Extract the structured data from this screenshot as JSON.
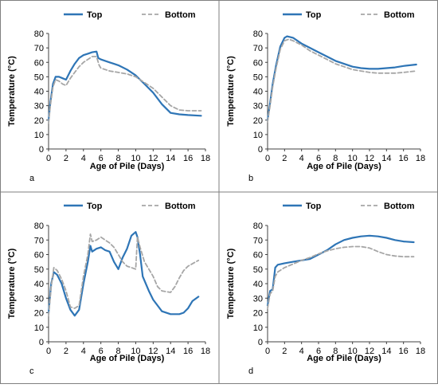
{
  "chart_data": [
    {
      "panel_label": "a",
      "type": "line",
      "xlabel": "Age of Pile (Days)",
      "ylabel": "Temperature (°C)",
      "xlim": [
        0,
        18
      ],
      "ylim": [
        0,
        80
      ],
      "xticks": [
        0,
        2,
        4,
        6,
        8,
        10,
        12,
        14,
        16,
        18
      ],
      "yticks": [
        0,
        10,
        20,
        30,
        40,
        50,
        60,
        70,
        80
      ],
      "legend_position": "top-center",
      "grid": false,
      "series": [
        {
          "name": "Top",
          "color": "#2E75B6",
          "style": "solid",
          "points": [
            [
              0,
              20
            ],
            [
              0.2,
              32
            ],
            [
              0.5,
              45
            ],
            [
              0.8,
              50
            ],
            [
              1.2,
              50
            ],
            [
              1.6,
              49
            ],
            [
              2.0,
              48
            ],
            [
              2.5,
              54
            ],
            [
              3.0,
              59
            ],
            [
              3.5,
              63
            ],
            [
              4.0,
              65
            ],
            [
              4.5,
              66
            ],
            [
              5.0,
              67
            ],
            [
              5.5,
              67.5
            ],
            [
              5.7,
              63
            ],
            [
              6.0,
              62
            ],
            [
              6.5,
              61
            ],
            [
              7.0,
              60
            ],
            [
              7.5,
              59
            ],
            [
              8.0,
              58
            ],
            [
              9.0,
              55
            ],
            [
              10.0,
              51
            ],
            [
              11.0,
              45
            ],
            [
              12.0,
              39
            ],
            [
              13.0,
              31
            ],
            [
              14.0,
              25
            ],
            [
              15.0,
              24
            ],
            [
              16.0,
              23.5
            ],
            [
              17.5,
              23
            ]
          ]
        },
        {
          "name": "Bottom",
          "color": "#A6A6A6",
          "style": "dashed",
          "points": [
            [
              0,
              18
            ],
            [
              0.2,
              30
            ],
            [
              0.5,
              43
            ],
            [
              0.8,
              48
            ],
            [
              1.2,
              47
            ],
            [
              1.6,
              45
            ],
            [
              2.0,
              44
            ],
            [
              2.5,
              49
            ],
            [
              3.0,
              53
            ],
            [
              3.5,
              57
            ],
            [
              4.0,
              60
            ],
            [
              4.5,
              62
            ],
            [
              5.0,
              64
            ],
            [
              5.5,
              64
            ],
            [
              5.8,
              58
            ],
            [
              6.0,
              56
            ],
            [
              7.0,
              54
            ],
            [
              8.0,
              53
            ],
            [
              9.0,
              52
            ],
            [
              10.0,
              50
            ],
            [
              11.0,
              46
            ],
            [
              12.0,
              42
            ],
            [
              13.0,
              36
            ],
            [
              14.0,
              30
            ],
            [
              15.0,
              27
            ],
            [
              16.0,
              26.5
            ],
            [
              17.5,
              26.5
            ]
          ]
        }
      ]
    },
    {
      "panel_label": "b",
      "type": "line",
      "xlabel": "Age of Pile (Days)",
      "ylabel": "Temperature (°C)",
      "xlim": [
        0,
        18
      ],
      "ylim": [
        0,
        80
      ],
      "xticks": [
        0,
        2,
        4,
        6,
        8,
        10,
        12,
        14,
        16,
        18
      ],
      "yticks": [
        0,
        10,
        20,
        30,
        40,
        50,
        60,
        70,
        80
      ],
      "legend_position": "top-center",
      "grid": false,
      "series": [
        {
          "name": "Top",
          "color": "#2E75B6",
          "style": "solid",
          "points": [
            [
              0,
              20
            ],
            [
              0.3,
              32
            ],
            [
              0.6,
              45
            ],
            [
              1.0,
              58
            ],
            [
              1.5,
              71
            ],
            [
              2.0,
              77
            ],
            [
              2.3,
              78
            ],
            [
              3.0,
              77
            ],
            [
              4.0,
              73
            ],
            [
              5.0,
              70
            ],
            [
              6.0,
              67
            ],
            [
              7.0,
              64
            ],
            [
              8.0,
              61
            ],
            [
              9.0,
              59
            ],
            [
              10.0,
              57
            ],
            [
              11.0,
              56
            ],
            [
              12.0,
              55.5
            ],
            [
              13.0,
              55.5
            ],
            [
              14.0,
              56
            ],
            [
              15.0,
              56.5
            ],
            [
              16.0,
              57.5
            ],
            [
              17.5,
              58.5
            ]
          ]
        },
        {
          "name": "Bottom",
          "color": "#A6A6A6",
          "style": "dashed",
          "points": [
            [
              0,
              19
            ],
            [
              0.3,
              30
            ],
            [
              0.6,
              43
            ],
            [
              1.0,
              56
            ],
            [
              1.5,
              69
            ],
            [
              2.0,
              75
            ],
            [
              2.5,
              76
            ],
            [
              3.0,
              75
            ],
            [
              4.0,
              72
            ],
            [
              5.0,
              68
            ],
            [
              6.0,
              65
            ],
            [
              7.0,
              62
            ],
            [
              8.0,
              59
            ],
            [
              9.0,
              57
            ],
            [
              10.0,
              55
            ],
            [
              11.0,
              54
            ],
            [
              12.0,
              53
            ],
            [
              13.0,
              52.5
            ],
            [
              14.0,
              52.5
            ],
            [
              15.0,
              52.5
            ],
            [
              16.0,
              53
            ],
            [
              17.5,
              54
            ]
          ]
        }
      ]
    },
    {
      "panel_label": "c",
      "type": "line",
      "xlabel": "Age of Pile (Days)",
      "ylabel": "Temperature (°C)",
      "xlim": [
        0,
        18
      ],
      "ylim": [
        0,
        80
      ],
      "xticks": [
        0,
        2,
        4,
        6,
        8,
        10,
        12,
        14,
        16,
        18
      ],
      "yticks": [
        0,
        10,
        20,
        30,
        40,
        50,
        60,
        70,
        80
      ],
      "legend_position": "top-center",
      "grid": false,
      "series": [
        {
          "name": "Top",
          "color": "#2E75B6",
          "style": "solid",
          "points": [
            [
              0,
              20
            ],
            [
              0.3,
              40
            ],
            [
              0.6,
              48
            ],
            [
              1.0,
              46
            ],
            [
              1.5,
              40
            ],
            [
              2.0,
              30
            ],
            [
              2.5,
              22
            ],
            [
              3.0,
              18
            ],
            [
              3.5,
              22
            ],
            [
              4.0,
              40
            ],
            [
              4.5,
              55
            ],
            [
              4.8,
              66
            ],
            [
              5.0,
              62
            ],
            [
              5.5,
              64
            ],
            [
              6.0,
              65
            ],
            [
              6.5,
              63
            ],
            [
              7.0,
              62
            ],
            [
              7.5,
              55
            ],
            [
              8.0,
              50
            ],
            [
              8.5,
              58
            ],
            [
              9.0,
              64
            ],
            [
              9.5,
              73
            ],
            [
              10.0,
              75.5
            ],
            [
              10.2,
              72
            ],
            [
              10.5,
              60
            ],
            [
              10.8,
              45
            ],
            [
              11.5,
              35
            ],
            [
              12.0,
              29
            ],
            [
              12.5,
              25
            ],
            [
              13.0,
              21
            ],
            [
              14.0,
              19
            ],
            [
              15.0,
              19
            ],
            [
              15.5,
              20
            ],
            [
              16.0,
              23
            ],
            [
              16.5,
              28
            ],
            [
              17.2,
              31
            ]
          ]
        },
        {
          "name": "Bottom",
          "color": "#A6A6A6",
          "style": "dashed",
          "points": [
            [
              0,
              18
            ],
            [
              0.3,
              38
            ],
            [
              0.6,
              51
            ],
            [
              1.0,
              49
            ],
            [
              1.5,
              43
            ],
            [
              2.0,
              35
            ],
            [
              2.5,
              24
            ],
            [
              3.0,
              23
            ],
            [
              3.5,
              25
            ],
            [
              4.0,
              45
            ],
            [
              4.5,
              60
            ],
            [
              4.8,
              74
            ],
            [
              5.0,
              69
            ],
            [
              5.5,
              70
            ],
            [
              6.0,
              72
            ],
            [
              6.5,
              70
            ],
            [
              7.0,
              68
            ],
            [
              7.5,
              65
            ],
            [
              8.0,
              60
            ],
            [
              8.5,
              55
            ],
            [
              9.0,
              52
            ],
            [
              9.5,
              51
            ],
            [
              10.0,
              50
            ],
            [
              10.2,
              72
            ],
            [
              10.5,
              65
            ],
            [
              11.0,
              55
            ],
            [
              11.5,
              50
            ],
            [
              12.0,
              45
            ],
            [
              12.5,
              38
            ],
            [
              13.0,
              35
            ],
            [
              14.0,
              34
            ],
            [
              14.5,
              38
            ],
            [
              15.0,
              44
            ],
            [
              15.5,
              49
            ],
            [
              16.0,
              52
            ],
            [
              17.2,
              56
            ]
          ]
        }
      ]
    },
    {
      "panel_label": "d",
      "type": "line",
      "xlabel": "Age of Pile (Days)",
      "ylabel": "Temperature (°C)",
      "xlim": [
        0,
        18
      ],
      "ylim": [
        0,
        80
      ],
      "xticks": [
        0,
        2,
        4,
        6,
        8,
        10,
        12,
        14,
        16,
        18
      ],
      "yticks": [
        0,
        10,
        20,
        30,
        40,
        50,
        60,
        70,
        80
      ],
      "legend_position": "top-center",
      "grid": false,
      "series": [
        {
          "name": "Top",
          "color": "#2E75B6",
          "style": "solid",
          "points": [
            [
              0,
              25
            ],
            [
              0.3,
              35
            ],
            [
              0.6,
              36
            ],
            [
              0.9,
              51
            ],
            [
              1.2,
              53
            ],
            [
              2.0,
              54
            ],
            [
              3.0,
              55
            ],
            [
              4.0,
              56
            ],
            [
              5.0,
              57
            ],
            [
              6.0,
              60
            ],
            [
              7.0,
              63
            ],
            [
              8.0,
              67
            ],
            [
              9.0,
              70
            ],
            [
              10.0,
              71.5
            ],
            [
              11.0,
              72.5
            ],
            [
              12.0,
              73
            ],
            [
              13.0,
              72.5
            ],
            [
              14.0,
              71.5
            ],
            [
              15.0,
              70
            ],
            [
              16.0,
              69
            ],
            [
              17.2,
              68.5
            ]
          ]
        },
        {
          "name": "Bottom",
          "color": "#A6A6A6",
          "style": "dashed",
          "points": [
            [
              0,
              23
            ],
            [
              0.3,
              33
            ],
            [
              0.6,
              35
            ],
            [
              0.9,
              45
            ],
            [
              1.2,
              48
            ],
            [
              2.0,
              51
            ],
            [
              3.0,
              53.5
            ],
            [
              4.0,
              56
            ],
            [
              5.0,
              58
            ],
            [
              6.0,
              60.5
            ],
            [
              7.0,
              62.5
            ],
            [
              8.0,
              64
            ],
            [
              9.0,
              65
            ],
            [
              10.0,
              65.5
            ],
            [
              11.0,
              65.5
            ],
            [
              12.0,
              64.5
            ],
            [
              13.0,
              62
            ],
            [
              14.0,
              60
            ],
            [
              15.0,
              59
            ],
            [
              16.0,
              58.5
            ],
            [
              17.2,
              58.5
            ]
          ]
        }
      ]
    }
  ]
}
